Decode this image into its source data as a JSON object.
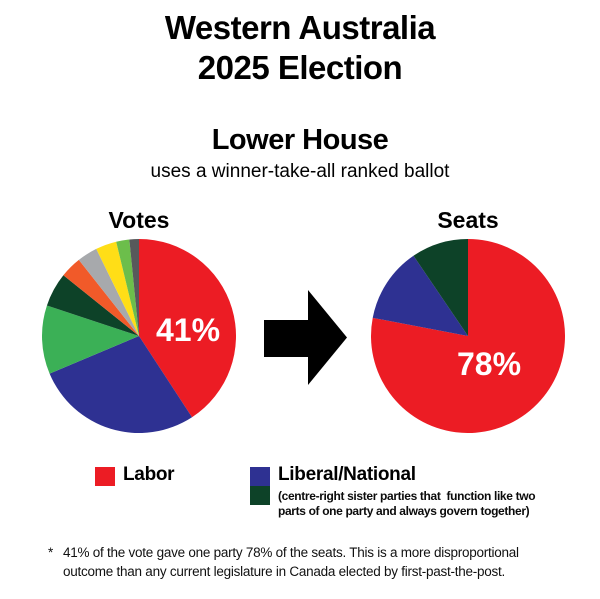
{
  "header": {
    "title_line1": "Western Australia",
    "title_line2": "2025 Election",
    "subtitle": "Lower House",
    "subtitle_note": "uses a winner-take-all ranked ballot"
  },
  "colors": {
    "labor_red": "#EC1C24",
    "liberal_blue": "#2E3192",
    "national_dark_green": "#0D4228",
    "green": "#3BB056",
    "orange": "#F15A29",
    "gray": "#A7A9AC",
    "yellow": "#FFDE17",
    "light_green": "#6CBE4B",
    "dark_gray": "#58595B",
    "arrow_black": "#000000"
  },
  "arrow_icon": "solid-right-arrow",
  "chart_data": [
    {
      "type": "pie",
      "title": "Votes",
      "unit": "percent of votes",
      "percent_label": "41%",
      "start_angle_deg": 0,
      "direction": "clockwise",
      "slices": [
        {
          "party": "Labor",
          "color": "#EC1C24",
          "value": 41
        },
        {
          "party": "Liberal (Liberal/National)",
          "color": "#2E3192",
          "value": 28
        },
        {
          "party": "unlabeled-green",
          "color": "#3BB056",
          "value": 11.5
        },
        {
          "party": "National (Liberal/National)",
          "color": "#0D4228",
          "value": 5.7
        },
        {
          "party": "unlabeled-orange",
          "color": "#F15A29",
          "value": 3.6
        },
        {
          "party": "unlabeled-gray",
          "color": "#A7A9AC",
          "value": 3.4
        },
        {
          "party": "unlabeled-yellow",
          "color": "#FFDE17",
          "value": 3.5
        },
        {
          "party": "unlabeled-light-green",
          "color": "#6CBE4B",
          "value": 2.2
        },
        {
          "party": "unlabeled-dark-gray",
          "color": "#58595B",
          "value": 1.6
        }
      ]
    },
    {
      "type": "pie",
      "title": "Seats",
      "unit": "percent of seats",
      "percent_label": "78%",
      "start_angle_deg": 0,
      "direction": "clockwise",
      "slices": [
        {
          "party": "Labor",
          "color": "#EC1C24",
          "value": 78
        },
        {
          "party": "Liberal (Liberal/National)",
          "color": "#2E3192",
          "value": 12.5
        },
        {
          "party": "National (Liberal/National)",
          "color": "#0D4228",
          "value": 9.5
        }
      ]
    }
  ],
  "legend": {
    "items": [
      {
        "label": "Labor",
        "colors": [
          "#EC1C24"
        ]
      },
      {
        "label": "Liberal/National",
        "colors": [
          "#2E3192",
          "#0D4228"
        ],
        "description_lines": [
          "(centre-right sister parties that  function like two",
          "parts of one party and always govern together)"
        ]
      }
    ]
  },
  "footnote": {
    "marker": "*",
    "lines": [
      "41% of the vote gave one party 78% of the seats. This is a more disproportional",
      "outcome than any current legislature in Canada elected by first-past-the-post."
    ]
  }
}
